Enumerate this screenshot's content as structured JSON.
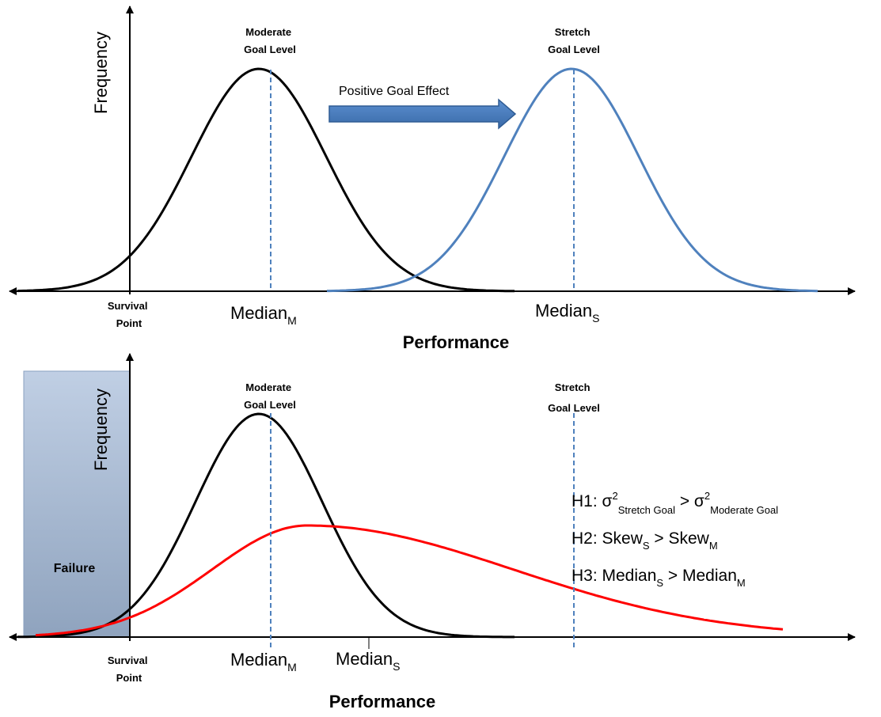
{
  "top_panel": {
    "y_axis_label": "Frequency",
    "x_axis_label": "Performance",
    "survival_point": [
      "Survival",
      "Point"
    ],
    "moderate_goal": [
      "Moderate",
      "Goal Level"
    ],
    "stretch_goal": [
      "Stretch",
      "Goal Level"
    ],
    "median_m": {
      "base": "Median",
      "sub": "M"
    },
    "median_s": {
      "base": "Median",
      "sub": "S"
    },
    "arrow_label": "Positive Goal Effect"
  },
  "bottom_panel": {
    "y_axis_label": "Frequency",
    "x_axis_label": "Performance",
    "survival_point": [
      "Survival",
      "Point"
    ],
    "moderate_goal": [
      "Moderate",
      "Goal Level"
    ],
    "stretch_goal": [
      "Stretch",
      "Goal Level"
    ],
    "failure_label": "Failure",
    "median_m": {
      "base": "Median",
      "sub": "M"
    },
    "median_s": {
      "base": "Median",
      "sub": "S"
    },
    "h1": {
      "prefix": "H1: σ",
      "sup1": "2",
      "sub1": "Stretch Goal",
      "mid": " > σ",
      "sup2": "2",
      "sub2": "Moderate Goal"
    },
    "h2": {
      "prefix": "H2: Skew",
      "sub1": "S",
      "mid": " > Skew",
      "sub2": "M"
    },
    "h3": {
      "prefix": "H3: Median",
      "sub1": "S",
      "mid": " > Median",
      "sub2": "M"
    }
  },
  "colors": {
    "moderate_curve": "#000000",
    "stretch_curve": "#4f81bd",
    "skewed_curve": "#ff0000",
    "median_line": "#4f81bd",
    "arrow_fill": "#4f81bd",
    "failure_region": "#b8c7dc"
  }
}
